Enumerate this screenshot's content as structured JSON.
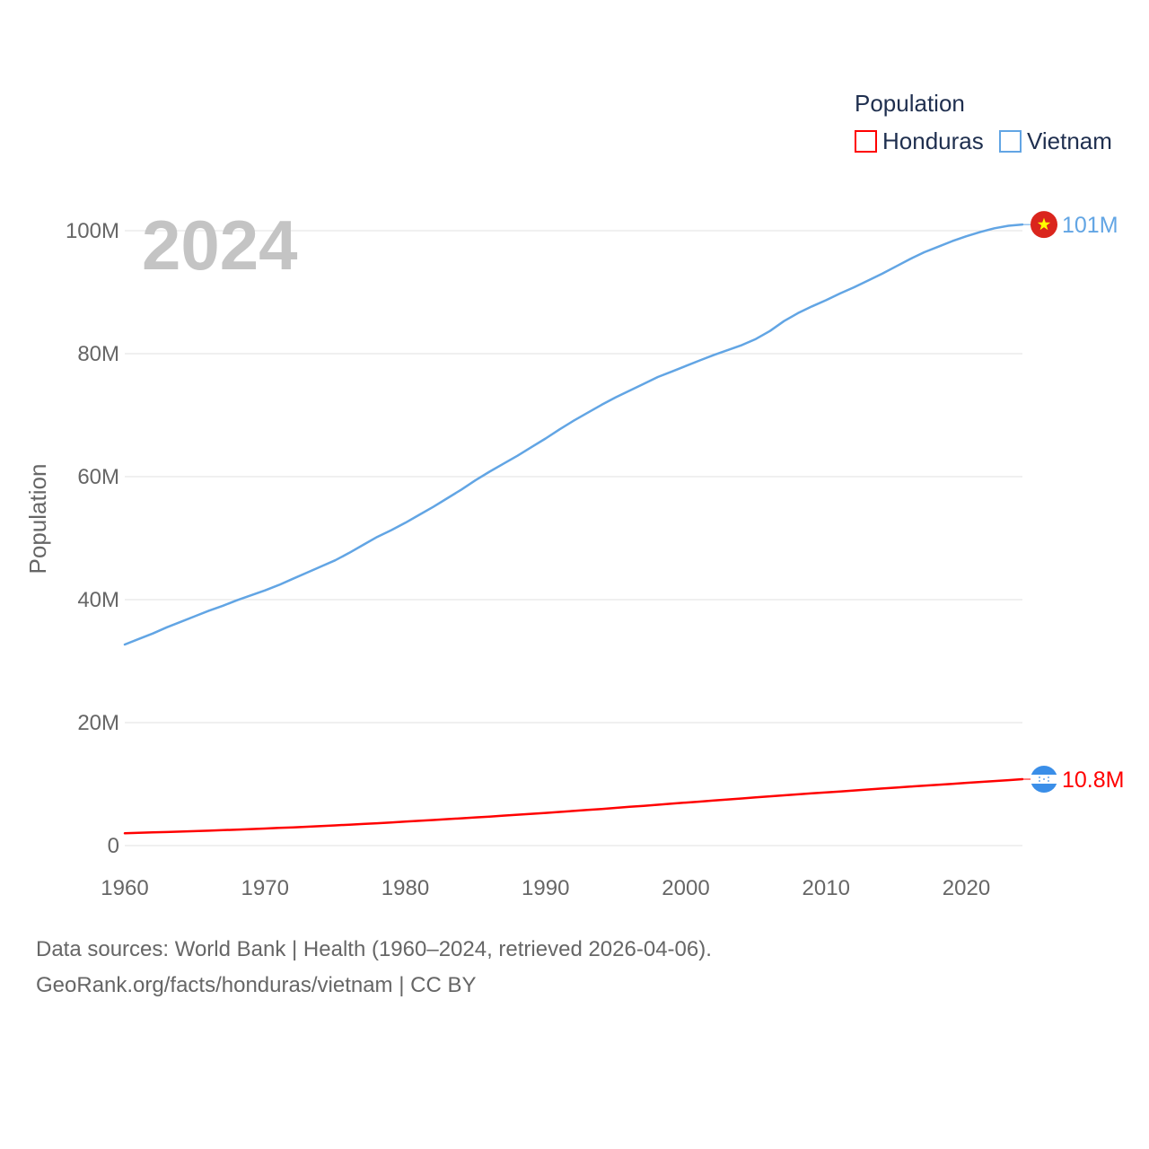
{
  "chart_data": {
    "type": "line",
    "title": "",
    "xlabel": "",
    "ylabel": "Population",
    "year_label": "2024",
    "legend_title": "Population",
    "legend_position": "top-right",
    "x": [
      1960,
      1961,
      1962,
      1963,
      1964,
      1965,
      1966,
      1967,
      1968,
      1969,
      1970,
      1971,
      1972,
      1973,
      1974,
      1975,
      1976,
      1977,
      1978,
      1979,
      1980,
      1981,
      1982,
      1983,
      1984,
      1985,
      1986,
      1987,
      1988,
      1989,
      1990,
      1991,
      1992,
      1993,
      1994,
      1995,
      1996,
      1997,
      1998,
      1999,
      2000,
      2001,
      2002,
      2003,
      2004,
      2005,
      2006,
      2007,
      2008,
      2009,
      2010,
      2011,
      2012,
      2013,
      2014,
      2015,
      2016,
      2017,
      2018,
      2019,
      2020,
      2021,
      2022,
      2023,
      2024
    ],
    "xlim": [
      1960,
      2024
    ],
    "xticks": [
      1960,
      1970,
      1980,
      1990,
      2000,
      2010,
      2020
    ],
    "xtick_labels": [
      "1960",
      "1970",
      "1980",
      "1990",
      "2000",
      "2010",
      "2020"
    ],
    "ylim": [
      0,
      100000000
    ],
    "yticks": [
      0,
      20000000,
      40000000,
      60000000,
      80000000,
      100000000
    ],
    "ytick_labels": [
      "0",
      "20M",
      "40M",
      "60M",
      "80M",
      "100M"
    ],
    "grid": true,
    "series": [
      {
        "name": "Honduras",
        "color": "#ff0000",
        "end_label": "10.8M",
        "flag": "honduras-flag",
        "values": [
          2.0,
          2.07,
          2.14,
          2.21,
          2.28,
          2.35,
          2.43,
          2.51,
          2.6,
          2.69,
          2.78,
          2.87,
          2.97,
          3.07,
          3.17,
          3.28,
          3.4,
          3.52,
          3.64,
          3.77,
          3.9,
          4.03,
          4.16,
          4.3,
          4.44,
          4.58,
          4.72,
          4.87,
          5.02,
          5.17,
          5.32,
          5.48,
          5.64,
          5.8,
          5.96,
          6.13,
          6.3,
          6.47,
          6.64,
          6.82,
          6.99,
          7.16,
          7.33,
          7.5,
          7.67,
          7.84,
          8.01,
          8.17,
          8.34,
          8.5,
          8.65,
          8.81,
          8.97,
          9.12,
          9.28,
          9.43,
          9.59,
          9.74,
          9.9,
          10.05,
          10.2,
          10.35,
          10.5,
          10.64,
          10.8
        ]
      },
      {
        "name": "Vietnam",
        "color": "#62a5e4",
        "end_label": "101M",
        "flag": "vietnam-flag",
        "values": [
          32.7,
          33.6,
          34.5,
          35.5,
          36.4,
          37.3,
          38.2,
          39.0,
          39.9,
          40.7,
          41.5,
          42.4,
          43.4,
          44.4,
          45.4,
          46.4,
          47.6,
          48.9,
          50.2,
          51.3,
          52.5,
          53.8,
          55.1,
          56.5,
          57.9,
          59.4,
          60.8,
          62.1,
          63.4,
          64.8,
          66.2,
          67.7,
          69.1,
          70.4,
          71.7,
          72.9,
          74.0,
          75.1,
          76.2,
          77.1,
          78.0,
          78.9,
          79.8,
          80.6,
          81.4,
          82.4,
          83.7,
          85.3,
          86.6,
          87.7,
          88.7,
          89.8,
          90.8,
          91.9,
          93.0,
          94.2,
          95.4,
          96.5,
          97.4,
          98.3,
          99.1,
          99.8,
          100.4,
          100.8,
          101.0
        ]
      }
    ]
  },
  "footer": {
    "line1": "Data sources: World Bank | Health (1960–2024, retrieved 2026-04-06).",
    "line2": "GeoRank.org/facts/honduras/vietnam | CC BY"
  }
}
